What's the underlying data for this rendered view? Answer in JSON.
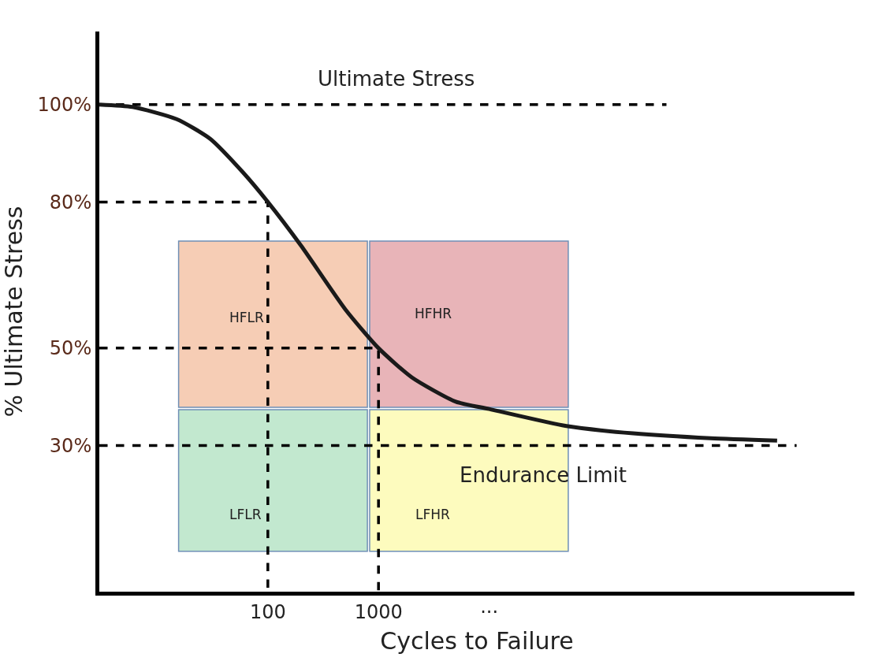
{
  "chart_data": {
    "type": "line",
    "xlabel": "Cycles to Failure",
    "ylabel": "% Ultimate Stress",
    "log": "x",
    "xlim": [
      3,
      20000000
    ],
    "ylim": [
      0,
      115
    ],
    "xticks": [
      100,
      1000,
      {
        "value": 10000,
        "label": "···"
      }
    ],
    "yticks": [
      {
        "value": 30,
        "label": "30%"
      },
      {
        "value": 50,
        "label": "50%"
      },
      {
        "value": 80,
        "label": "80%"
      },
      {
        "value": 100,
        "label": "100%"
      }
    ],
    "grid": false,
    "marker": "none",
    "series": [
      {
        "line_style": "dashed",
        "color": "#000000",
        "x": [
          3,
          400000
        ],
        "values": [
          100,
          100
        ]
      },
      {
        "line_style": "dashed",
        "color": "#000000",
        "x": [
          3,
          100,
          100
        ],
        "values": [
          80,
          80,
          0
        ]
      },
      {
        "line_style": "dashed",
        "color": "#000000",
        "x": [
          3,
          1000,
          1000
        ],
        "values": [
          50,
          50,
          0
        ]
      },
      {
        "line_style": "dashed",
        "color": "#000000",
        "x": [
          3,
          6000000
        ],
        "values": [
          30,
          30
        ]
      },
      {
        "line_style": "solid",
        "color": "#1a1a1a",
        "x": [
          3,
          6,
          15,
          30,
          60,
          100,
          200,
          500,
          1000,
          2000,
          5000,
          10000,
          50000,
          200000,
          1000000,
          4000000
        ],
        "values": [
          100,
          99.5,
          97,
          93,
          86,
          80,
          71,
          58,
          50,
          44,
          39,
          37.5,
          34,
          32.5,
          31.5,
          31
        ]
      }
    ],
    "annotations": [
      "Ultimate Stress",
      "Endurance Limit",
      "HFLR",
      "HFHR",
      "LFLR",
      "LFHR"
    ]
  }
}
